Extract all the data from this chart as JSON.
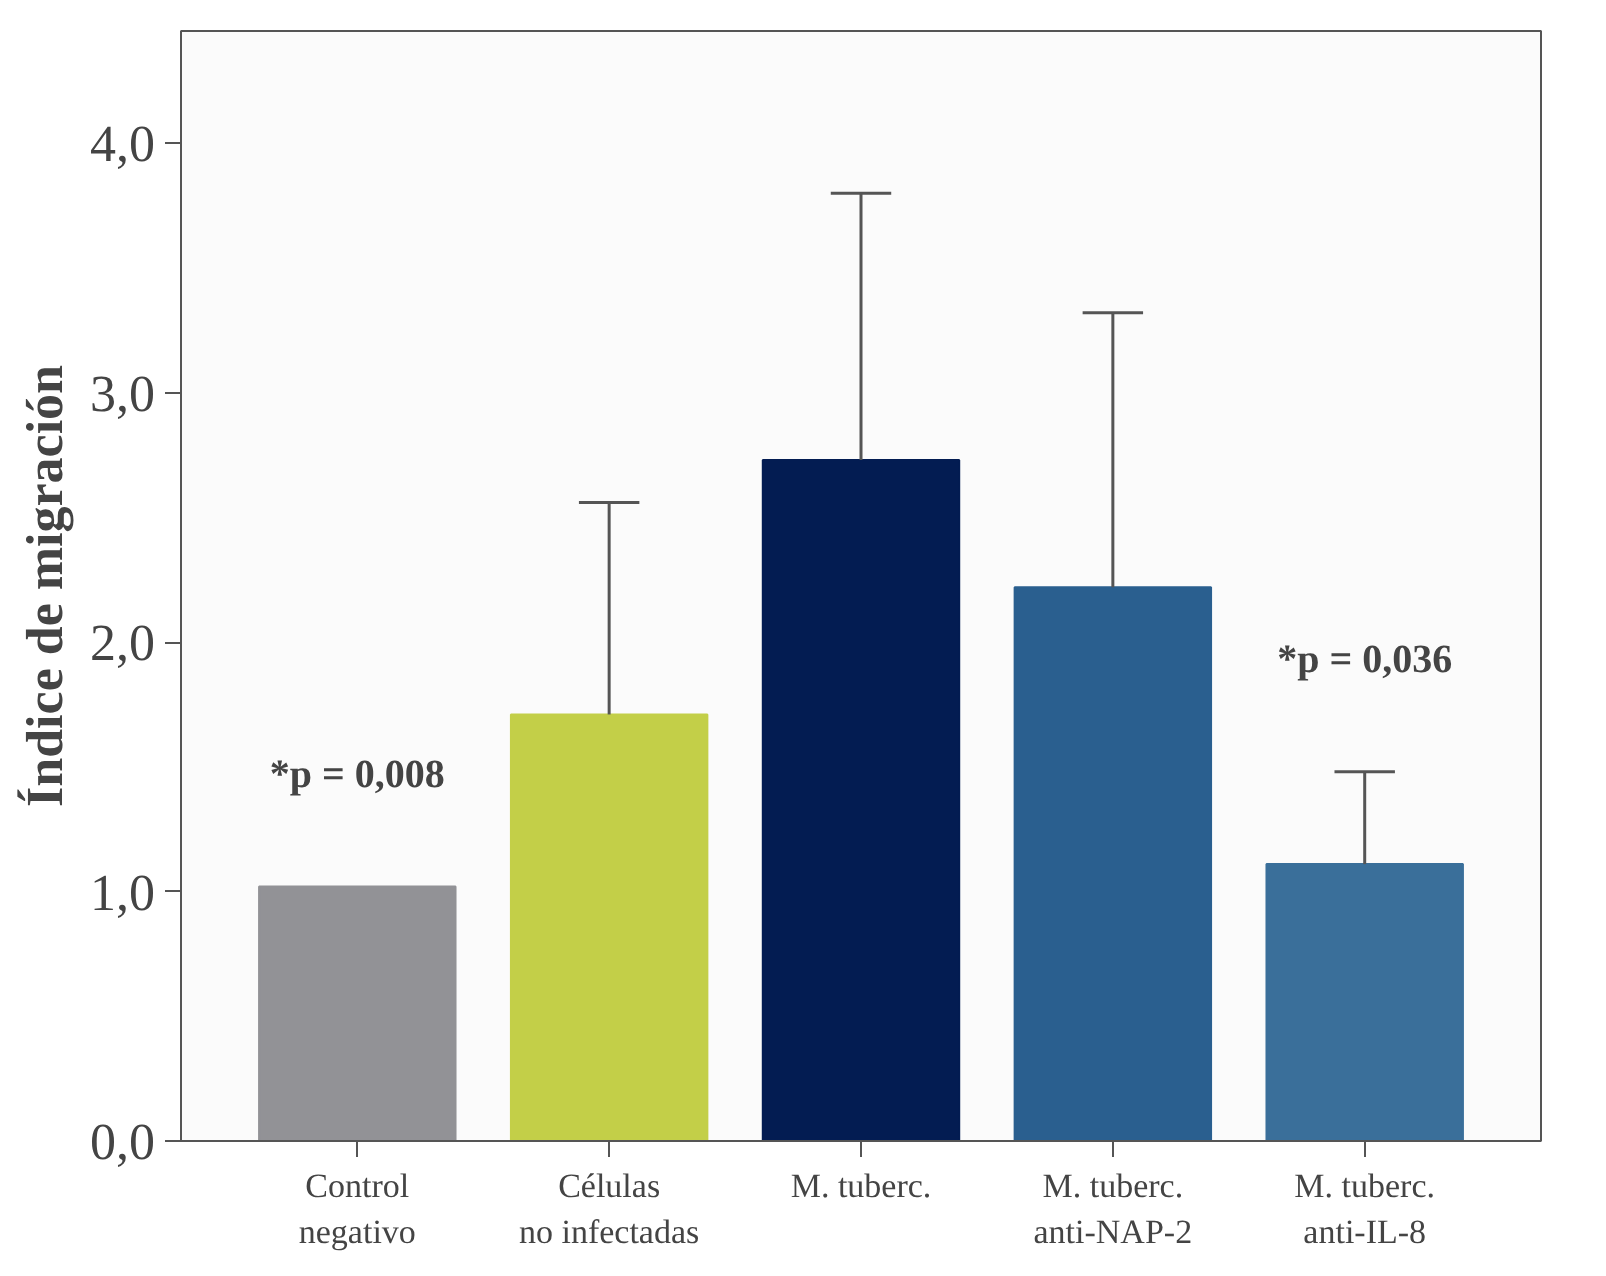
{
  "chart_data": {
    "type": "bar",
    "ylabel": "Índice de migración",
    "categories": [
      "Control\nnegativo",
      "Células\nno infectadas",
      "M. tuberc.",
      "M. tuberc.\nanti-NAP-2",
      "M. tuberc.\nanti-IL-8"
    ],
    "values": [
      1.02,
      1.71,
      2.73,
      2.22,
      1.11
    ],
    "errors": [
      null,
      [
        1.71,
        2.56
      ],
      [
        2.73,
        3.8
      ],
      [
        2.22,
        3.32
      ],
      [
        1.11,
        1.48
      ]
    ],
    "colors": [
      "#929296",
      "#c3cf48",
      "#031c52",
      "#2a5f8f",
      "#3a6f9a"
    ],
    "ylim": [
      0,
      4.45
    ],
    "yticks": [
      {
        "value": 0,
        "label": "0,0"
      },
      {
        "value": 1,
        "label": "1,0"
      },
      {
        "value": 2,
        "label": "2,0"
      },
      {
        "value": 3,
        "label": "3,0"
      },
      {
        "value": 4,
        "label": "4,0"
      }
    ],
    "annotations": [
      "*p = 0,008",
      "*p = 0,036"
    ],
    "grid": false
  }
}
